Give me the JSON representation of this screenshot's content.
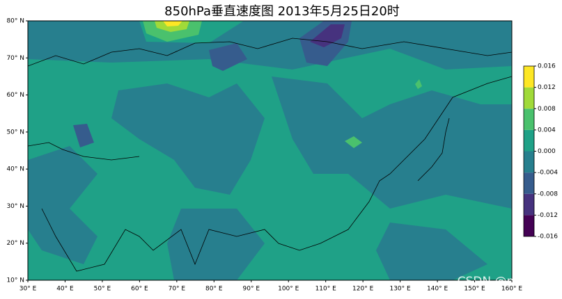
{
  "title": "850hPa垂直速度图   2013年5月25日20时",
  "xticks": [
    {
      "value": 30,
      "label": "30° E"
    },
    {
      "value": 40,
      "label": "40° E"
    },
    {
      "value": 50,
      "label": "50° E"
    },
    {
      "value": 60,
      "label": "60° E"
    },
    {
      "value": 70,
      "label": "70° E"
    },
    {
      "value": 80,
      "label": "80° E"
    },
    {
      "value": 90,
      "label": "90° E"
    },
    {
      "value": 100,
      "label": "100° E"
    },
    {
      "value": 110,
      "label": "110° E"
    },
    {
      "value": 120,
      "label": "120° E"
    },
    {
      "value": 130,
      "label": "130° E"
    },
    {
      "value": 140,
      "label": "140° E"
    },
    {
      "value": 150,
      "label": "150° E"
    },
    {
      "value": 160,
      "label": "160° E"
    }
  ],
  "xlim": [
    30,
    160
  ],
  "yticks": [
    {
      "value": 10,
      "label": "10° N"
    },
    {
      "value": 20,
      "label": "20° N"
    },
    {
      "value": 30,
      "label": "30° N"
    },
    {
      "value": 40,
      "label": "40° N"
    },
    {
      "value": 50,
      "label": "50° N"
    },
    {
      "value": 60,
      "label": "60° N"
    },
    {
      "value": 70,
      "label": "70° N"
    },
    {
      "value": 80,
      "label": "80° N"
    }
  ],
  "ylim": [
    10,
    80
  ],
  "colorbar": {
    "ticks": [
      -0.016,
      -0.012,
      -0.008,
      -0.004,
      {
        "value": 0,
        "label": "0.000"
      },
      0.004,
      0.008,
      0.012,
      0.016
    ],
    "colors": [
      "#440154",
      "#46327e",
      "#365c8d",
      "#277f8e",
      "#1fa187",
      "#4ac16d",
      "#a0da39",
      "#fde725"
    ]
  },
  "watermark": "CSDN @mgl666"
}
